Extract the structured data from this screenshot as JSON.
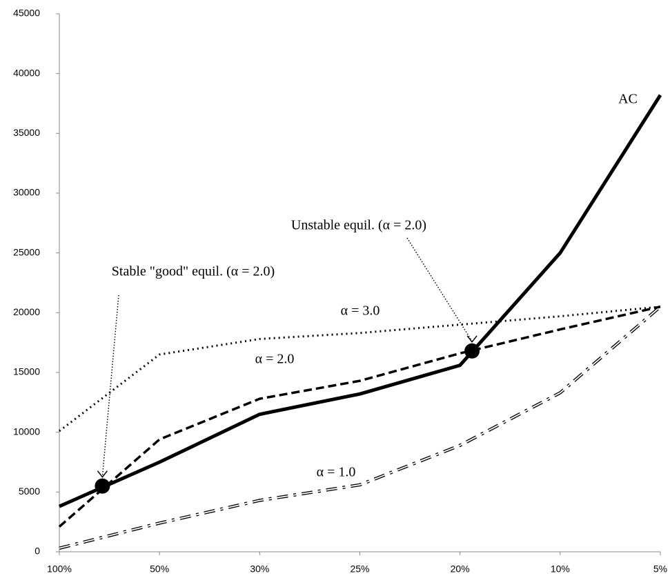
{
  "chart_data": {
    "type": "line",
    "categories": [
      "100%",
      "50%",
      "30%",
      "25%",
      "20%",
      "10%",
      "5%"
    ],
    "ylim": [
      0,
      45000
    ],
    "yticks": [
      0,
      5000,
      10000,
      15000,
      20000,
      25000,
      30000,
      35000,
      40000,
      45000
    ],
    "grid": false,
    "series": [
      {
        "name": "AC",
        "color": "#000000",
        "style": "solid",
        "values": [
          3800,
          7500,
          11500,
          13200,
          15600,
          25000,
          38200
        ]
      },
      {
        "name": "α = 3.0",
        "color": "#000000",
        "style": "dotted",
        "values": [
          10100,
          16500,
          17800,
          18300,
          19000,
          19700,
          20500
        ]
      },
      {
        "name": "α = 2.0",
        "color": "#000000",
        "style": "dashed",
        "values": [
          2100,
          9400,
          12800,
          14300,
          16600,
          18600,
          20500
        ]
      },
      {
        "name": "α = 1.0",
        "color": "#000000",
        "style": "dashdot-hollow",
        "values": [
          300,
          2400,
          4300,
          5600,
          8900,
          13300,
          20500
        ]
      }
    ],
    "annotations": [
      {
        "text": "Stable \"good\" equil. (α = 2.0)",
        "point": 5500
      },
      {
        "text": "Unstable equil. (α = 2.0)",
        "point": 16800
      }
    ]
  }
}
